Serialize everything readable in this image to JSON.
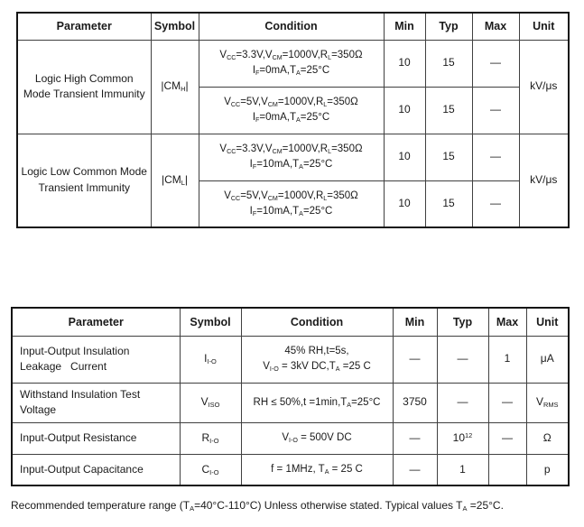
{
  "table1": {
    "headers": [
      "Parameter",
      "Symbol",
      "Condition",
      "Min",
      "Typ",
      "Max",
      "Unit"
    ],
    "groups": [
      {
        "parameter": "Logic High Common\nMode Transient Immunity",
        "symbol": "|CM_{H}|",
        "unit": "kV/μs",
        "rows": [
          {
            "condition": "V_{CC}=3.3V,V_{CM}=1000V,R_{L}=350Ω\nI_{F}=0mA,T_{A}=25°C",
            "min": "10",
            "typ": "15",
            "max": "—"
          },
          {
            "condition": "V_{CC}=5V,V_{CM}=1000V,R_{L}=350Ω\nI_{F}=0mA,T_{A}=25°C",
            "min": "10",
            "typ": "15",
            "max": "—"
          }
        ]
      },
      {
        "parameter": "Logic Low Common Mode\nTransient Immunity",
        "symbol": "|CM_{L}|",
        "unit": "kV/μs",
        "rows": [
          {
            "condition": "V_{CC}=3.3V,V_{CM}=1000V,R_{L}=350Ω\nI_{F}=10mA,T_{A}=25°C",
            "min": "10",
            "typ": "15",
            "max": "—"
          },
          {
            "condition": "V_{CC}=5V,V_{CM}=1000V,R_{L}=350Ω\nI_{F}=10mA,T_{A}=25°C",
            "min": "10",
            "typ": "15",
            "max": "—"
          }
        ]
      }
    ]
  },
  "table2": {
    "headers": [
      "Parameter",
      "Symbol",
      "Condition",
      "Min",
      "Typ",
      "Max",
      "Unit"
    ],
    "rows": [
      {
        "parameter": "Input-Output Insulation\nLeakage   Current",
        "symbol": "I_{I-O}",
        "condition": "45% RH,t=5s,\nV_{I-O} = 3kV DC,T_{A} =25 C",
        "min": "—",
        "typ": "—",
        "max": "1",
        "unit": "μA"
      },
      {
        "parameter": "Withstand Insulation Test\nVoltage",
        "symbol": "V_{ISO}",
        "condition": "RH ≤ 50%,t =1min,T_{A}=25°C",
        "min": "3750",
        "typ": "—",
        "max": "—",
        "unit": "V_{RMS}"
      },
      {
        "parameter": "Input-Output Resistance",
        "symbol": "R_{I-O}",
        "condition": "V_{I-O} = 500V DC",
        "min": "—",
        "typ": "10^{12}",
        "max": "—",
        "unit": "Ω"
      },
      {
        "parameter": "Input-Output Capacitance",
        "symbol": "C_{I-O}",
        "condition": "f = 1MHz, T_{A} = 25 C",
        "min": "—",
        "typ": "1",
        "max": "",
        "unit": "p"
      }
    ]
  },
  "footnote": "Recommended temperature range (T_{A}=40°C-110°C) Unless otherwise stated. Typical values T_{A} =25°C."
}
